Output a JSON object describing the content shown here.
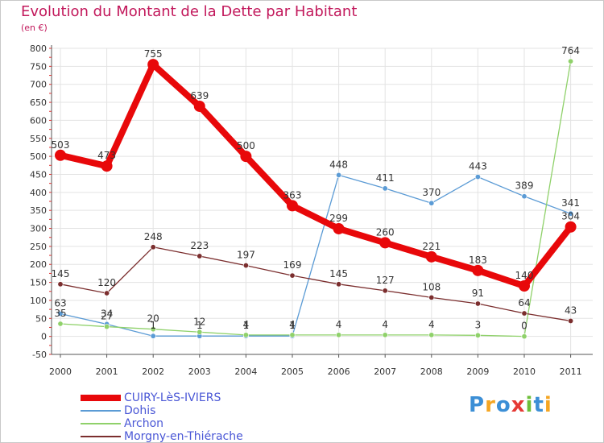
{
  "header": {
    "title": "Evolution du Montant de la Dette par Habitant",
    "unit": "(en €)"
  },
  "logo": {
    "text": "Proxiti",
    "letters": [
      "P",
      "r",
      "o",
      "x",
      "i",
      "t",
      "i"
    ],
    "colors": [
      "#3c8fd6",
      "#f5a623",
      "#3c8fd6",
      "#e53935",
      "#6dbf3a",
      "#3c8fd6",
      "#f5a623"
    ]
  },
  "chart_data": {
    "type": "line",
    "title": "Evolution du Montant de la Dette par Habitant",
    "ylabel": "(en €)",
    "xlabel": "",
    "x": [
      "2000",
      "2001",
      "2002",
      "2003",
      "2004",
      "2005",
      "2006",
      "2007",
      "2008",
      "2009",
      "2010",
      "2011"
    ],
    "ylim": [
      -50,
      800
    ],
    "yticks": [
      -50,
      0,
      50,
      100,
      150,
      200,
      250,
      300,
      350,
      400,
      450,
      500,
      550,
      600,
      650,
      700,
      750,
      800
    ],
    "grid": true,
    "legend_position": "bottom-left",
    "series": [
      {
        "name": "CUIRY-LèS-IVIERS",
        "color": "#e8080a",
        "emphasis": true,
        "values": [
          503,
          473,
          755,
          639,
          500,
          363,
          299,
          260,
          221,
          183,
          140,
          304
        ],
        "labels": [
          "503",
          "473",
          "755",
          "639",
          "500",
          "363",
          "299",
          "260",
          "221",
          "183",
          "140",
          "304"
        ]
      },
      {
        "name": "Dohis",
        "color": "#5b9bd5",
        "emphasis": false,
        "values": [
          63,
          34,
          1,
          1,
          1,
          1,
          448,
          411,
          370,
          443,
          389,
          341
        ],
        "labels": [
          "63",
          "34",
          "1",
          "1",
          "1",
          "1",
          "448",
          "411",
          "370",
          "443",
          "389",
          "341"
        ]
      },
      {
        "name": "Archon",
        "color": "#8fd16a",
        "emphasis": false,
        "values": [
          35,
          27,
          20,
          12,
          4,
          4,
          4,
          4,
          4,
          3,
          0,
          764
        ],
        "labels": [
          "35",
          "27",
          "20",
          "12",
          "4",
          "4",
          "4",
          "4",
          "4",
          "3",
          "0",
          "764"
        ]
      },
      {
        "name": "Morgny-en-Thiérache",
        "color": "#7b2e2e",
        "emphasis": false,
        "values": [
          145,
          120,
          248,
          223,
          197,
          169,
          145,
          127,
          108,
          91,
          64,
          43
        ],
        "labels": [
          "145",
          "120",
          "248",
          "223",
          "197",
          "169",
          "145",
          "127",
          "108",
          "91",
          "64",
          "43"
        ]
      }
    ]
  }
}
